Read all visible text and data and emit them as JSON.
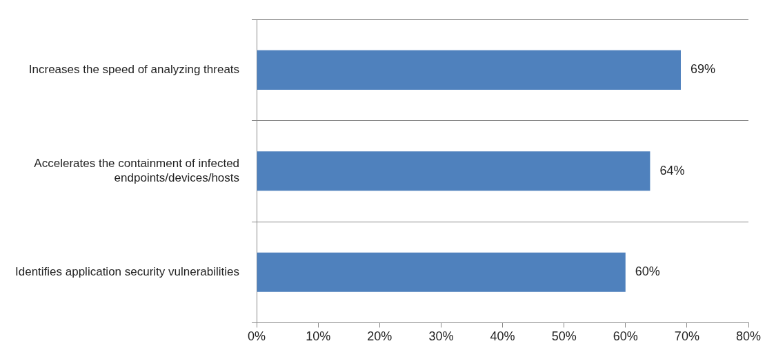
{
  "chart_data": {
    "type": "bar",
    "orientation": "horizontal",
    "categories": [
      "Increases the speed of analyzing threats",
      "Accelerates the containment of infected endpoints/devices/hosts",
      "Identifies application security vulnerabilities"
    ],
    "values": [
      69,
      64,
      60
    ],
    "color": "#4f81bd",
    "value_labels": [
      "69%",
      "64%",
      "60%"
    ],
    "xlim": [
      0,
      80
    ],
    "xticks": [
      {
        "value": 0,
        "label": "0%"
      },
      {
        "value": 10,
        "label": "10%"
      },
      {
        "value": 20,
        "label": "20%"
      },
      {
        "value": 30,
        "label": "30%"
      },
      {
        "value": 40,
        "label": "40%"
      },
      {
        "value": 50,
        "label": "50%"
      },
      {
        "value": 60,
        "label": "60%"
      },
      {
        "value": 70,
        "label": "70%"
      },
      {
        "value": 80,
        "label": "80%"
      }
    ],
    "grid": "y",
    "legend": false
  }
}
